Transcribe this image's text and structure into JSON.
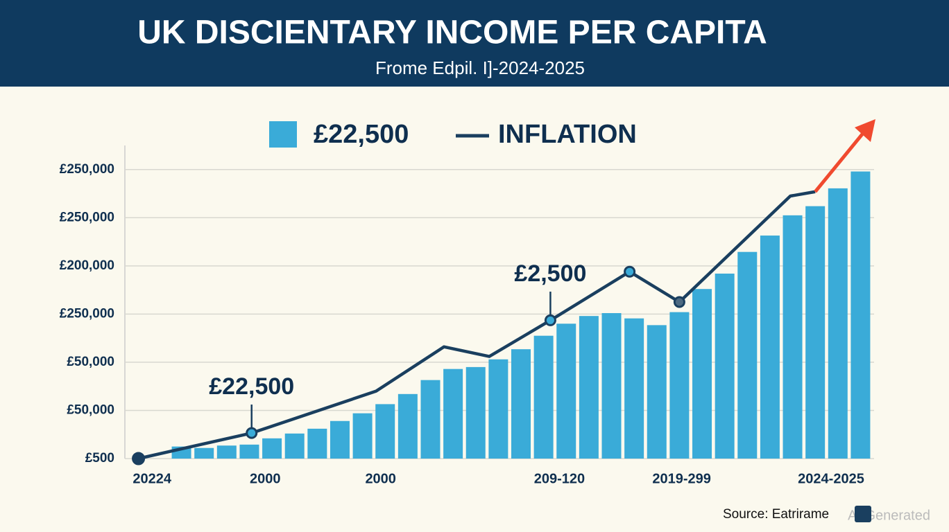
{
  "chart_data": {
    "type": "bar",
    "title": "UK DISCIENTARY INCOME PER CAPITA",
    "subtitle": "Frome Edpil. I]-2024-2025",
    "x": [
      0,
      1,
      2,
      3,
      4,
      5,
      6,
      7,
      8,
      9,
      10,
      11,
      12,
      13,
      14,
      15,
      16,
      17,
      18,
      19,
      20,
      21,
      22,
      23,
      24,
      25,
      26,
      27,
      28,
      29,
      30
    ],
    "xlim": [
      -2.5,
      30.6
    ],
    "xticks": [
      {
        "value": -1.3,
        "label": "20224"
      },
      {
        "value": 3.7,
        "label": "2000"
      },
      {
        "value": 8.8,
        "label": "2000"
      },
      {
        "value": 16.7,
        "label": "209-120"
      },
      {
        "value": 22.1,
        "label": "2019-299"
      },
      {
        "value": 28.7,
        "label": "2024-2025"
      }
    ],
    "ylim": [
      0,
      6.5
    ],
    "yticks": [
      {
        "value": 0,
        "label": "£500"
      },
      {
        "value": 1,
        "label": "£50,000"
      },
      {
        "value": 2,
        "label": "£50,000"
      },
      {
        "value": 3,
        "label": "£250,000"
      },
      {
        "value": 4,
        "label": "£200,000"
      },
      {
        "value": 5,
        "label": "£250,000"
      },
      {
        "value": 6,
        "label": "£250,000"
      }
    ],
    "grid": true,
    "series": [
      {
        "name": "£22,500",
        "color": "#3aabd8",
        "values": [
          0.25,
          0.22,
          0.27,
          0.29,
          0.42,
          0.52,
          0.62,
          0.78,
          0.94,
          1.13,
          1.34,
          1.63,
          1.86,
          1.9,
          2.06,
          2.27,
          2.55,
          2.8,
          2.96,
          3.02,
          2.91,
          2.77,
          3.04,
          3.52,
          3.84,
          4.29,
          4.63,
          5.05,
          5.24,
          5.61,
          5.96
        ]
      },
      {
        "name": "INFLATION",
        "color": "#1a3f5f",
        "x": [
          -1.9,
          3.1,
          8.6,
          11.6,
          13.6,
          16.3,
          19.8,
          22.0,
          26.9,
          28.0
        ],
        "values": [
          0,
          0.53,
          1.4,
          2.32,
          2.12,
          2.87,
          3.88,
          3.25,
          5.45,
          5.54
        ]
      }
    ],
    "annotations": [
      "£22,500",
      "£2,500"
    ],
    "source": "Source: Eatrirame",
    "watermark": "AI Generated"
  }
}
